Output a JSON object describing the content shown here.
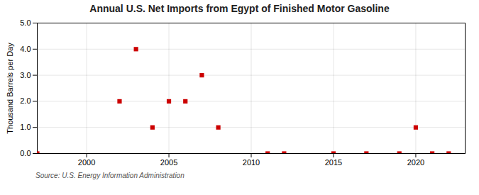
{
  "chart_data": {
    "type": "scatter",
    "title": "Annual U.S. Net Imports from Egypt of Finished Motor Gasoline",
    "ylabel": "Thousand Barrels per Day",
    "source": "Source: U.S. Energy Information Administration",
    "x": [
      1997,
      2002,
      2003,
      2004,
      2005,
      2006,
      2007,
      2008,
      2011,
      2012,
      2015,
      2017,
      2019,
      2020,
      2021,
      2022
    ],
    "values": [
      0,
      2,
      4,
      1,
      2,
      2,
      3,
      1,
      0,
      0,
      0,
      0,
      0,
      1,
      0,
      0
    ],
    "color": "#cc0000",
    "marker": "square",
    "xlim": [
      1997,
      2023
    ],
    "ylim": [
      0.0,
      5.0
    ],
    "xticks": [
      2000,
      2005,
      2010,
      2015,
      2020
    ],
    "yticks": [
      {
        "value": 0,
        "label": "0.0"
      },
      {
        "value": 1,
        "label": "1.0"
      },
      {
        "value": 2,
        "label": "2.0"
      },
      {
        "value": 3,
        "label": "3.0"
      },
      {
        "value": 4,
        "label": "4.0"
      },
      {
        "value": 5,
        "label": "5.0"
      }
    ],
    "grid": true
  }
}
